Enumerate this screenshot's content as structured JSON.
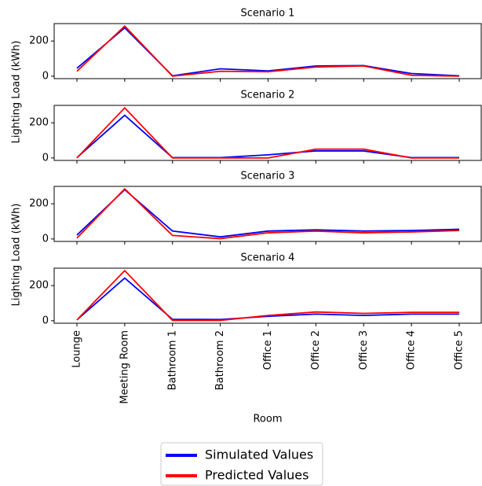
{
  "chart_data": [
    {
      "type": "line",
      "title": "Scenario 1",
      "y_label": "Lighting Load (kWh)",
      "ylim": [
        -14,
        299
      ],
      "yticks": [
        0,
        200
      ],
      "series": [
        {
          "name": "Simulated Values",
          "color": "#0000ff",
          "values": [
            45,
            275,
            2,
            42,
            30,
            58,
            60,
            15,
            2
          ]
        },
        {
          "name": "Predicted Values",
          "color": "#ff0000",
          "values": [
            28,
            285,
            0,
            28,
            25,
            52,
            58,
            5,
            0
          ]
        }
      ]
    },
    {
      "type": "line",
      "title": "Scenario 2",
      "ylim": [
        -14,
        299
      ],
      "yticks": [
        0,
        200
      ],
      "series": [
        {
          "color": "#0000ff",
          "values": [
            2,
            243,
            2,
            2,
            18,
            40,
            40,
            2,
            2
          ]
        },
        {
          "color": "#ff0000",
          "values": [
            0,
            285,
            0,
            0,
            0,
            50,
            50,
            0,
            0
          ]
        }
      ]
    },
    {
      "type": "line",
      "title": "Scenario 3",
      "y_label": "Lighting Load (kWh)",
      "ylim": [
        -14,
        299
      ],
      "yticks": [
        0,
        200
      ],
      "series": [
        {
          "color": "#0000ff",
          "values": [
            22,
            280,
            45,
            12,
            45,
            52,
            45,
            48,
            55
          ]
        },
        {
          "color": "#ff0000",
          "values": [
            5,
            285,
            20,
            2,
            35,
            45,
            35,
            40,
            48
          ]
        }
      ]
    },
    {
      "type": "line",
      "title": "Scenario 4",
      "x_label": "Room",
      "ylim": [
        -14,
        299
      ],
      "yticks": [
        0,
        200
      ],
      "categories": [
        "Lounge",
        "Meeting Room",
        "Bathroom 1",
        "Bathroom 2",
        "Office 1",
        "Office 2",
        "Office 3",
        "Office 4",
        "Office 5"
      ],
      "series": [
        {
          "color": "#0000ff",
          "values": [
            5,
            243,
            8,
            7,
            25,
            38,
            30,
            38,
            38
          ]
        },
        {
          "color": "#ff0000",
          "values": [
            5,
            285,
            2,
            2,
            30,
            50,
            42,
            48,
            48
          ]
        }
      ]
    }
  ]
}
